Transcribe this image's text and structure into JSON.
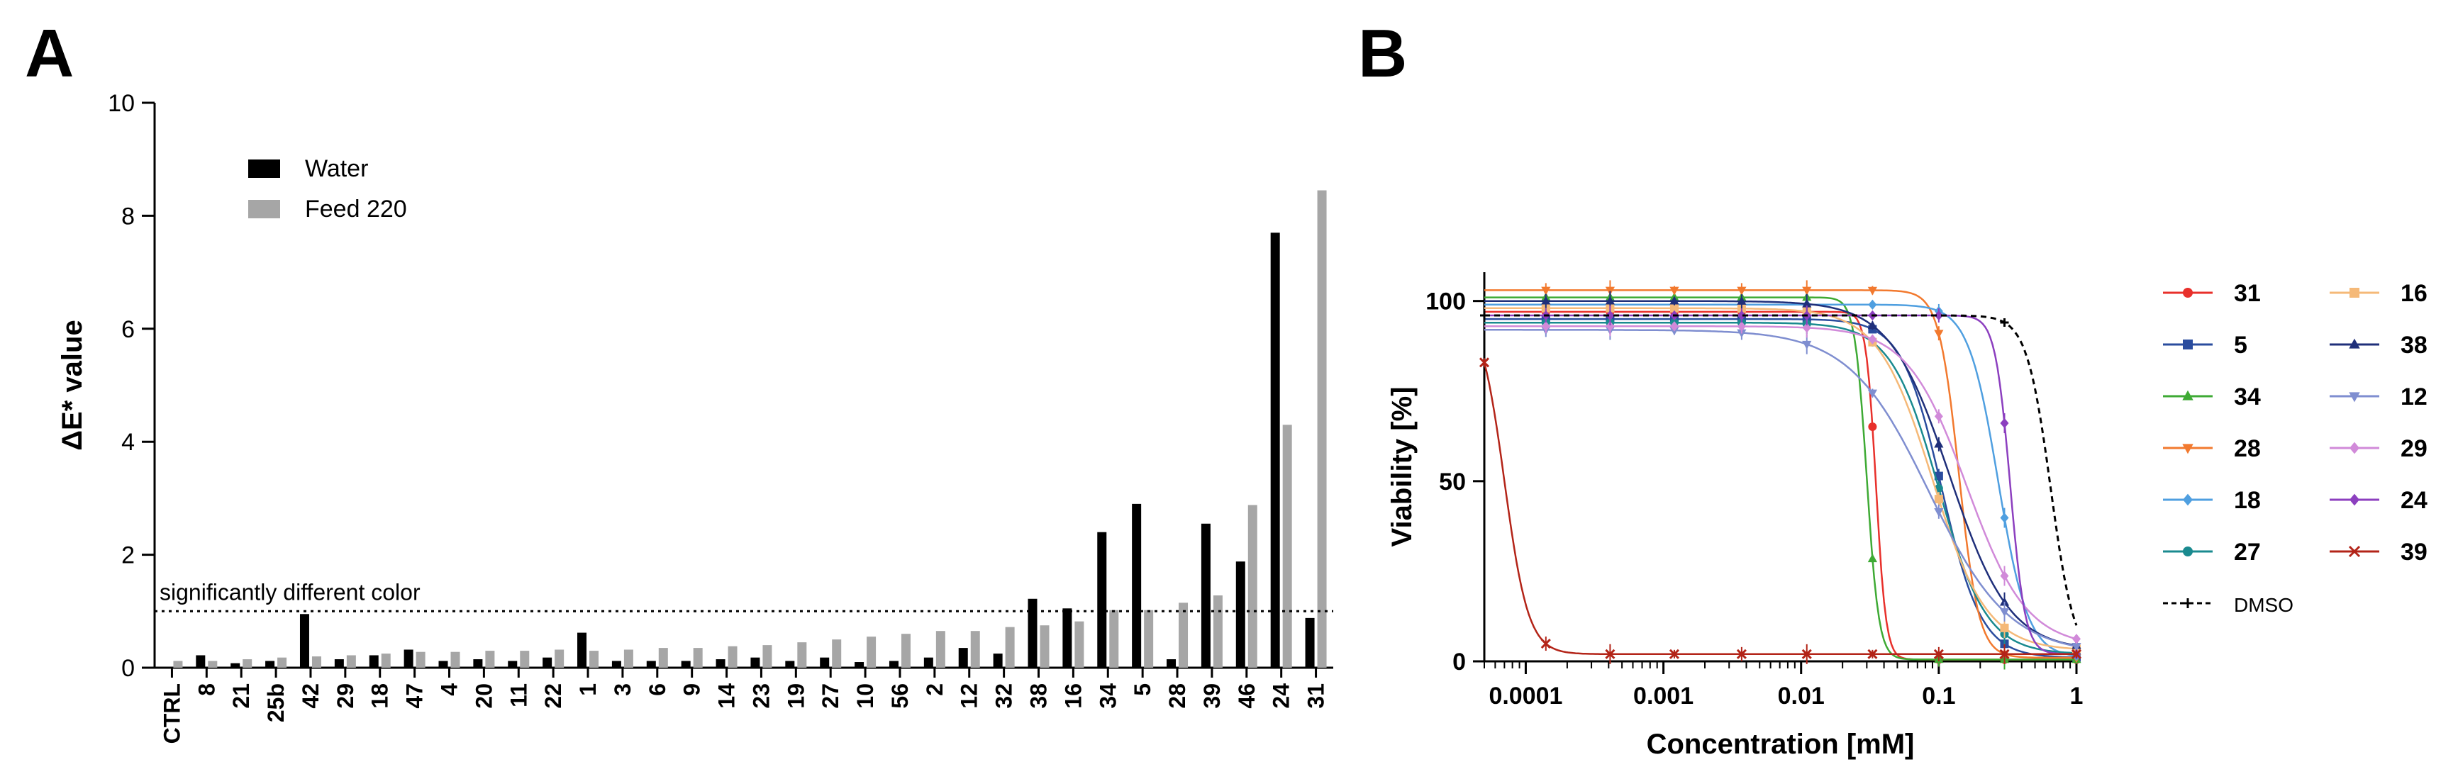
{
  "panel_labels": {
    "a": "A",
    "b": "B"
  },
  "chart_data": [
    {
      "type": "bar",
      "panel": "A",
      "ylabel": "ΔE* value",
      "ylim": [
        0,
        10
      ],
      "yticks": [
        0,
        2,
        4,
        6,
        8,
        10
      ],
      "grid": false,
      "legend_position": "top-left",
      "categories": [
        "CTRL",
        "8",
        "21",
        "25b",
        "42",
        "29",
        "18",
        "47",
        "4",
        "20",
        "11",
        "22",
        "1",
        "3",
        "6",
        "9",
        "14",
        "23",
        "19",
        "27",
        "10",
        "56",
        "2",
        "12",
        "32",
        "38",
        "16",
        "34",
        "5",
        "28",
        "39",
        "46",
        "24",
        "31"
      ],
      "series": [
        {
          "name": "Water",
          "color": "#000000",
          "values": [
            0,
            0.22,
            0.08,
            0.12,
            0.95,
            0.15,
            0.22,
            0.32,
            0.12,
            0.15,
            0.12,
            0.18,
            0.62,
            0.12,
            0.12,
            0.12,
            0.15,
            0.18,
            0.12,
            0.18,
            0.1,
            0.12,
            0.18,
            0.35,
            0.25,
            1.22,
            1.05,
            2.4,
            2.9,
            0.15,
            2.55,
            1.88,
            7.7,
            0.88
          ]
        },
        {
          "name": "Feed 220",
          "color": "#a6a6a6",
          "values": [
            0.12,
            0.12,
            0.15,
            0.18,
            0.2,
            0.22,
            0.25,
            0.28,
            0.28,
            0.3,
            0.3,
            0.32,
            0.3,
            0.32,
            0.35,
            0.35,
            0.38,
            0.4,
            0.45,
            0.5,
            0.55,
            0.6,
            0.65,
            0.65,
            0.72,
            0.75,
            0.82,
            1.02,
            1.02,
            1.15,
            1.28,
            2.88,
            4.3,
            8.45
          ]
        }
      ],
      "threshold": {
        "value": 1.0,
        "label": "significantly different color"
      }
    },
    {
      "type": "line",
      "panel": "B",
      "xscale": "log",
      "xlabel": "Concentration [mM]",
      "ylabel": "Viability [%]",
      "xlim": [
        5e-05,
        1
      ],
      "ylim": [
        0,
        108
      ],
      "xticks": [
        0.0001,
        0.001,
        0.01,
        0.1,
        1
      ],
      "xtick_labels": [
        "0.0001",
        "0.001",
        "0.01",
        "0.1",
        "1"
      ],
      "yticks": [
        0,
        50,
        100
      ],
      "grid": false,
      "legend_position": "right",
      "x": [
        5e-05,
        0.00014,
        0.00041,
        0.0012,
        0.0037,
        0.011,
        0.033,
        0.1,
        0.3,
        1
      ],
      "series": [
        {
          "name": "31",
          "color": "#e8302b",
          "marker": "circle",
          "top": 97,
          "bottom": 0.5,
          "ic50": 0.035,
          "hill": 12
        },
        {
          "name": "5",
          "color": "#2a4c9e",
          "marker": "square",
          "top": 95,
          "bottom": 1,
          "ic50": 0.105,
          "hill": 3
        },
        {
          "name": "34",
          "color": "#3eaa34",
          "marker": "triangle",
          "top": 101,
          "bottom": 0.5,
          "ic50": 0.03,
          "hill": 10
        },
        {
          "name": "28",
          "color": "#f2792e",
          "marker": "triangle-down",
          "top": 103,
          "bottom": 1,
          "ic50": 0.14,
          "hill": 6
        },
        {
          "name": "18",
          "color": "#4f9fe0",
          "marker": "diamond",
          "top": 99,
          "bottom": 1,
          "ic50": 0.27,
          "hill": 4
        },
        {
          "name": "27",
          "color": "#1a8a8f",
          "marker": "circle",
          "top": 94,
          "bottom": 2,
          "ic50": 0.1,
          "hill": 2.5
        },
        {
          "name": "16",
          "color": "#f5b978",
          "marker": "square",
          "top": 98,
          "bottom": 3,
          "ic50": 0.09,
          "hill": 2.2
        },
        {
          "name": "38",
          "color": "#1f2f7a",
          "marker": "triangle",
          "top": 100,
          "bottom": 3,
          "ic50": 0.12,
          "hill": 2
        },
        {
          "name": "12",
          "color": "#7f8ed0",
          "marker": "triangle-down",
          "top": 92,
          "bottom": 2,
          "ic50": 0.085,
          "hill": 1.5
        },
        {
          "name": "29",
          "color": "#d18ad9",
          "marker": "diamond",
          "top": 93,
          "bottom": 4,
          "ic50": 0.16,
          "hill": 2
        },
        {
          "name": "24",
          "color": "#8c3fbf",
          "marker": "diamond",
          "top": 96,
          "bottom": 2,
          "ic50": 0.33,
          "hill": 8
        },
        {
          "name": "39",
          "color": "#b32418",
          "marker": "x",
          "top": 98,
          "bottom": 2,
          "ic50": 7e-05,
          "hill": 5
        },
        {
          "name": "DMSO",
          "color": "#000000",
          "marker": "plus",
          "dashed": true,
          "top": 96,
          "bottom": 0,
          "ic50": 0.65,
          "hill": 5
        }
      ]
    }
  ]
}
